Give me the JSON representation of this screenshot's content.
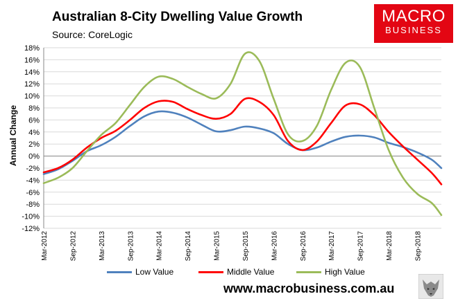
{
  "title": "Australian 8-City Dwelling Value Growth",
  "subtitle": "Source: CoreLogic",
  "logo": {
    "line1": "MACRO",
    "line2": "BUSINESS",
    "color": "#e30613"
  },
  "website": "www.macrobusiness.com.au",
  "chart_data": {
    "type": "line",
    "ylabel": "Annual Change",
    "ylim": [
      -12,
      18
    ],
    "yticks": [
      18,
      16,
      14,
      12,
      10,
      8,
      6,
      4,
      2,
      0,
      -2,
      -4,
      -6,
      -8,
      -10,
      -12
    ],
    "ytick_labels": [
      "18%",
      "16%",
      "14%",
      "12%",
      "10%",
      "8%",
      "6%",
      "4%",
      "2%",
      "0%",
      "-2%",
      "-4%",
      "-6%",
      "-8%",
      "-10%",
      "-12%"
    ],
    "x_start": "Mar-2012",
    "x_labels": [
      "Mar-2012",
      "Sep-2012",
      "Mar-2013",
      "Sep-2013",
      "Mar-2014",
      "Sep-2014",
      "Mar-2015",
      "Sep-2015",
      "Mar-2016",
      "Sep-2016",
      "Mar-2017",
      "Sep-2017",
      "Mar-2018",
      "Sep-2018"
    ],
    "grid": true,
    "legend_position": "bottom",
    "series": [
      {
        "name": "Low Value",
        "color": "#4f81bd",
        "points": [
          [
            "Mar-2012",
            -3.0
          ],
          [
            "Jun-2012",
            -2.2
          ],
          [
            "Sep-2012",
            -0.8
          ],
          [
            "Dec-2012",
            0.8
          ],
          [
            "Mar-2013",
            1.8
          ],
          [
            "Jun-2013",
            3.2
          ],
          [
            "Sep-2013",
            5.0
          ],
          [
            "Dec-2013",
            6.6
          ],
          [
            "Mar-2014",
            7.4
          ],
          [
            "Jun-2014",
            7.2
          ],
          [
            "Sep-2014",
            6.4
          ],
          [
            "Dec-2014",
            5.2
          ],
          [
            "Mar-2015",
            4.1
          ],
          [
            "Jun-2015",
            4.3
          ],
          [
            "Sep-2015",
            4.9
          ],
          [
            "Dec-2015",
            4.6
          ],
          [
            "Mar-2016",
            3.8
          ],
          [
            "Jun-2016",
            2.0
          ],
          [
            "Sep-2016",
            1.0
          ],
          [
            "Dec-2016",
            1.4
          ],
          [
            "Mar-2017",
            2.4
          ],
          [
            "Jun-2017",
            3.2
          ],
          [
            "Sep-2017",
            3.4
          ],
          [
            "Dec-2017",
            3.1
          ],
          [
            "Mar-2018",
            2.2
          ],
          [
            "Jun-2018",
            1.5
          ],
          [
            "Sep-2018",
            0.6
          ],
          [
            "Dec-2018",
            -0.6
          ],
          [
            "Feb-2019",
            -2.0
          ]
        ]
      },
      {
        "name": "Middle Value",
        "color": "#ff0000",
        "points": [
          [
            "Mar-2012",
            -2.7
          ],
          [
            "Jun-2012",
            -2.0
          ],
          [
            "Sep-2012",
            -0.6
          ],
          [
            "Dec-2012",
            1.4
          ],
          [
            "Mar-2013",
            3.0
          ],
          [
            "Jun-2013",
            4.2
          ],
          [
            "Sep-2013",
            6.0
          ],
          [
            "Dec-2013",
            8.0
          ],
          [
            "Mar-2014",
            9.1
          ],
          [
            "Jun-2014",
            9.0
          ],
          [
            "Sep-2014",
            7.8
          ],
          [
            "Dec-2014",
            6.8
          ],
          [
            "Mar-2015",
            6.2
          ],
          [
            "Jun-2015",
            7.0
          ],
          [
            "Sep-2015",
            9.5
          ],
          [
            "Dec-2015",
            9.0
          ],
          [
            "Mar-2016",
            6.8
          ],
          [
            "Jun-2016",
            2.5
          ],
          [
            "Sep-2016",
            1.0
          ],
          [
            "Dec-2016",
            2.4
          ],
          [
            "Mar-2017",
            5.5
          ],
          [
            "Jun-2017",
            8.4
          ],
          [
            "Sep-2017",
            8.6
          ],
          [
            "Dec-2017",
            6.8
          ],
          [
            "Mar-2018",
            4.0
          ],
          [
            "Jun-2018",
            1.6
          ],
          [
            "Sep-2018",
            -0.6
          ],
          [
            "Dec-2018",
            -2.8
          ],
          [
            "Feb-2019",
            -4.7
          ]
        ]
      },
      {
        "name": "High Value",
        "color": "#9bbb59",
        "points": [
          [
            "Mar-2012",
            -4.5
          ],
          [
            "Jun-2012",
            -3.6
          ],
          [
            "Sep-2012",
            -2.0
          ],
          [
            "Dec-2012",
            0.8
          ],
          [
            "Mar-2013",
            3.5
          ],
          [
            "Jun-2013",
            5.5
          ],
          [
            "Sep-2013",
            8.5
          ],
          [
            "Dec-2013",
            11.5
          ],
          [
            "Mar-2014",
            13.2
          ],
          [
            "Jun-2014",
            12.8
          ],
          [
            "Sep-2014",
            11.5
          ],
          [
            "Dec-2014",
            10.3
          ],
          [
            "Mar-2015",
            9.6
          ],
          [
            "Jun-2015",
            12.0
          ],
          [
            "Sep-2015",
            17.0
          ],
          [
            "Dec-2015",
            15.8
          ],
          [
            "Mar-2016",
            9.5
          ],
          [
            "Jun-2016",
            3.6
          ],
          [
            "Sep-2016",
            2.5
          ],
          [
            "Dec-2016",
            5.0
          ],
          [
            "Mar-2017",
            11.0
          ],
          [
            "Jun-2017",
            15.5
          ],
          [
            "Sep-2017",
            14.8
          ],
          [
            "Dec-2017",
            8.0
          ],
          [
            "Mar-2018",
            1.0
          ],
          [
            "Jun-2018",
            -3.6
          ],
          [
            "Sep-2018",
            -6.3
          ],
          [
            "Dec-2018",
            -7.8
          ],
          [
            "Feb-2019",
            -9.8
          ]
        ]
      }
    ]
  }
}
